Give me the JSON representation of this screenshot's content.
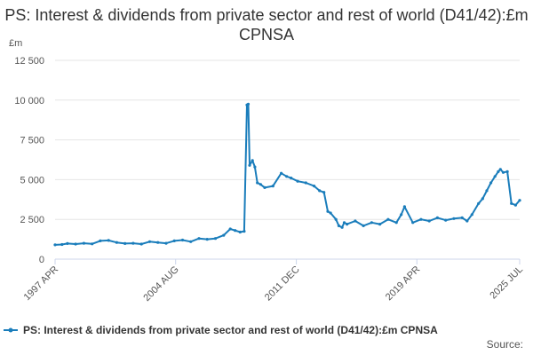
{
  "chart_data": {
    "type": "line",
    "title": "PS: Interest & dividends from private sector and rest of world (D41/42):£m CPNSA",
    "y_unit": "£m",
    "xlabel": "",
    "ylabel": "",
    "ylim": [
      0,
      12500
    ],
    "yticks": [
      0,
      2500,
      5000,
      7500,
      10000,
      12500
    ],
    "ytick_labels": [
      "0",
      "2 500",
      "5 000",
      "7 500",
      "10 000",
      "12 500"
    ],
    "x_tick_labels": [
      "1997 APR",
      "2004 AUG",
      "2011 DEC",
      "2019 APR",
      "2025 JUL"
    ],
    "x_tick_dates": [
      1997.25,
      2004.58,
      2011.92,
      2019.25,
      2025.5
    ],
    "xlim": [
      1997.25,
      2025.5
    ],
    "grid": "horizontal",
    "legend_position": "bottom",
    "color": "#1a7dbb",
    "series": [
      {
        "name": "PS: Interest & dividends from private sector and rest of world (D41/42):£m CPNSA",
        "x": [
          1997.25,
          1997.67,
          1998.0,
          1998.5,
          1999.0,
          1999.5,
          2000.0,
          2000.5,
          2001.0,
          2001.5,
          2002.0,
          2002.5,
          2003.0,
          2003.5,
          2004.0,
          2004.5,
          2005.0,
          2005.5,
          2006.0,
          2006.5,
          2007.0,
          2007.5,
          2007.9,
          2008.2,
          2008.5,
          2008.75,
          2008.92,
          2009.0,
          2009.08,
          2009.25,
          2009.4,
          2009.55,
          2009.75,
          2010.0,
          2010.5,
          2011.0,
          2011.33,
          2011.6,
          2012.0,
          2012.5,
          2013.0,
          2013.33,
          2013.6,
          2013.83,
          2014.0,
          2014.33,
          2014.5,
          2014.7,
          2014.83,
          2015.0,
          2015.5,
          2016.0,
          2016.5,
          2017.0,
          2017.5,
          2018.0,
          2018.3,
          2018.5,
          2019.0,
          2019.5,
          2020.0,
          2020.5,
          2021.0,
          2021.5,
          2022.0,
          2022.3,
          2022.6,
          2023.0,
          2023.25,
          2023.5,
          2023.75,
          2024.0,
          2024.2,
          2024.33,
          2024.5,
          2024.75,
          2025.0,
          2025.25,
          2025.5
        ],
        "values": [
          900,
          920,
          980,
          950,
          1000,
          960,
          1150,
          1180,
          1050,
          980,
          1000,
          950,
          1100,
          1050,
          1000,
          1150,
          1200,
          1100,
          1300,
          1250,
          1300,
          1500,
          1900,
          1800,
          1700,
          1750,
          9700,
          9750,
          5900,
          6200,
          5800,
          4800,
          4700,
          4500,
          4600,
          5400,
          5200,
          5100,
          4900,
          4800,
          4600,
          4300,
          4200,
          3000,
          2900,
          2500,
          2100,
          2000,
          2300,
          2200,
          2400,
          2100,
          2300,
          2200,
          2500,
          2300,
          2800,
          3300,
          2300,
          2500,
          2400,
          2600,
          2450,
          2550,
          2600,
          2400,
          2800,
          3500,
          3800,
          4300,
          4800,
          5200,
          5500,
          5650,
          5450,
          5500,
          3500,
          3400,
          3700
        ]
      }
    ]
  },
  "legend": {
    "label": "PS: Interest & dividends from private sector and rest of world (D41/42):£m CPNSA"
  },
  "footer": {
    "source_label": "Source:"
  }
}
